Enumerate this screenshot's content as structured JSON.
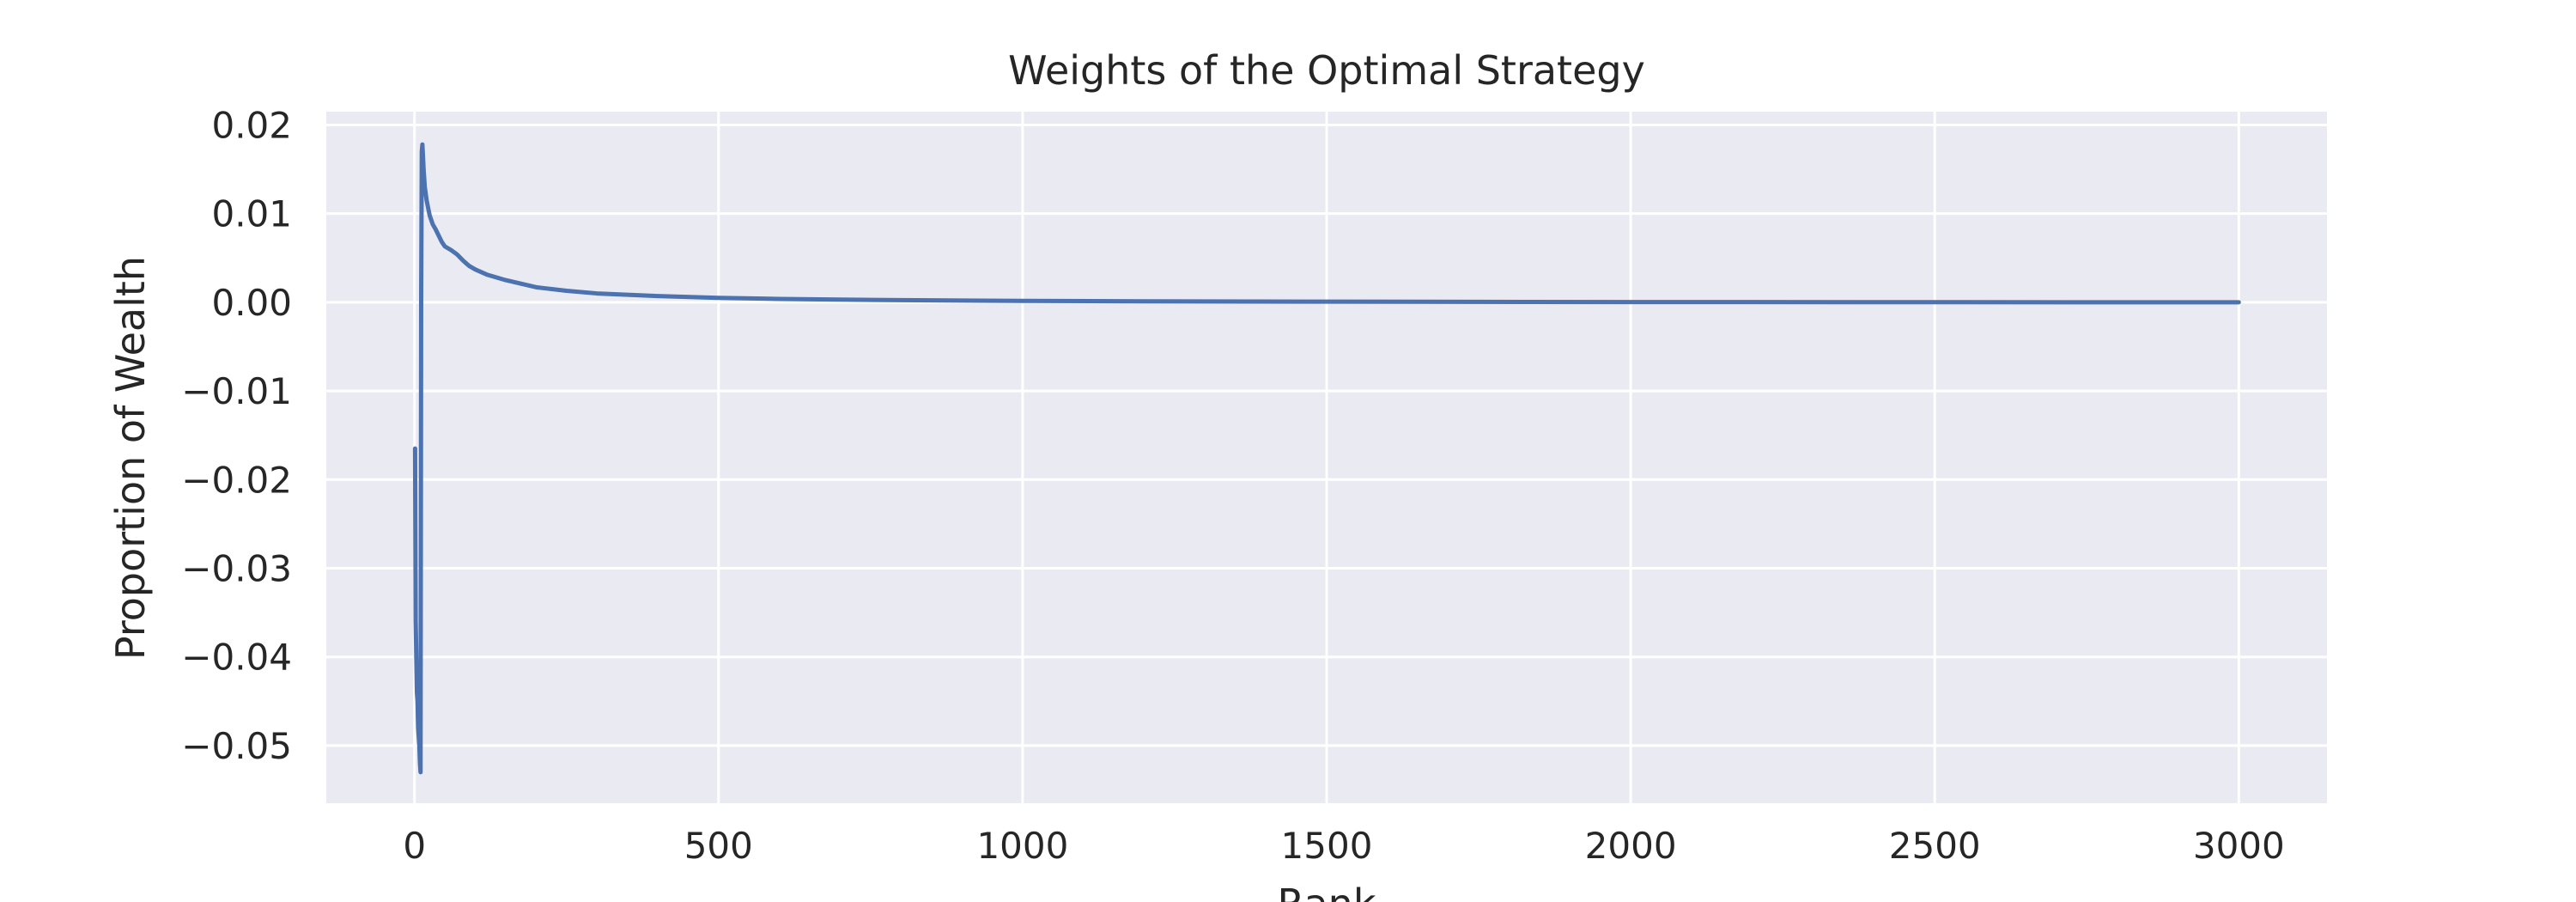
{
  "chart_data": {
    "type": "line",
    "title": "Weights of the Optimal Strategy",
    "xlabel": "Rank",
    "ylabel": "Proportion of Wealth",
    "xlim": [
      -145,
      3145
    ],
    "ylim": [
      -0.0565,
      0.0215
    ],
    "x_ticks": [
      0,
      500,
      1000,
      1500,
      2000,
      2500,
      3000
    ],
    "x_tick_labels": [
      "0",
      "500",
      "1000",
      "1500",
      "2000",
      "2500",
      "3000"
    ],
    "y_ticks": [
      0.02,
      0.01,
      0.0,
      -0.01,
      -0.02,
      -0.03,
      -0.04,
      -0.05
    ],
    "y_tick_labels": [
      "0.02",
      "0.01",
      "0.00",
      "−0.01",
      "−0.02",
      "−0.03",
      "−0.04",
      "−0.05"
    ],
    "grid": true,
    "legend": "none",
    "colors": {
      "background": "#eaeaf2",
      "grid": "#ffffff",
      "line": "#4c72b0",
      "text": "#262626"
    },
    "series": [
      {
        "x": [
          1,
          2,
          3,
          4,
          5,
          6,
          7,
          8,
          9,
          10,
          11,
          12,
          13,
          14,
          15,
          16,
          17,
          18,
          19,
          20,
          22,
          25,
          30,
          35,
          40,
          45,
          50,
          60,
          70,
          80,
          90,
          100,
          120,
          150,
          200,
          250,
          300,
          350,
          400,
          500,
          600,
          700,
          800,
          1000,
          1200,
          1500,
          2000,
          2500,
          3000
        ],
        "y": [
          -0.0165,
          -0.036,
          -0.04,
          -0.044,
          -0.045,
          -0.048,
          -0.049,
          -0.05,
          -0.052,
          -0.053,
          0.0,
          0.017,
          0.0178,
          0.0165,
          0.015,
          0.014,
          0.013,
          0.0125,
          0.012,
          0.0115,
          0.0108,
          0.0098,
          0.0088,
          0.0082,
          0.0075,
          0.0068,
          0.0063,
          0.0059,
          0.0054,
          0.0047,
          0.0041,
          0.0037,
          0.0031,
          0.0025,
          0.0017,
          0.0013,
          0.001,
          0.00085,
          0.0007,
          0.0005,
          0.00038,
          0.0003,
          0.00024,
          0.00016,
          0.00011,
          7e-05,
          3e-05,
          1e-05,
          0.0
        ]
      }
    ]
  }
}
